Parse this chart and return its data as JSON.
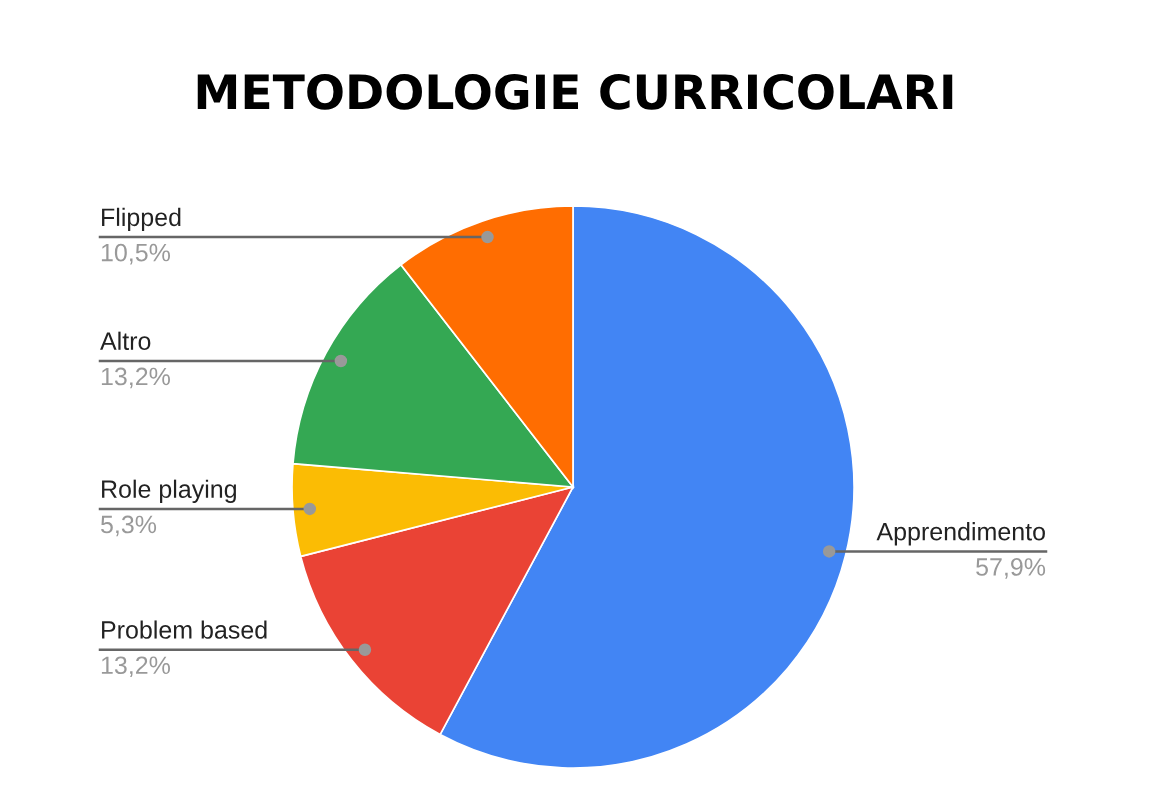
{
  "chart_data": {
    "type": "pie",
    "title": "METODOLOGIE CURRICOLARI",
    "categories": [
      "Apprendimento",
      "Problem based",
      "Role playing",
      "Altro",
      "Flipped"
    ],
    "values": [
      57.9,
      13.2,
      5.3,
      13.2,
      10.5
    ],
    "colors": [
      "#4285f4",
      "#ea4335",
      "#fbbc04",
      "#34a853",
      "#ff6d01"
    ],
    "value_labels": [
      "57,9%",
      "13,2%",
      "5,3%",
      "13,2%",
      "10,5%"
    ]
  }
}
